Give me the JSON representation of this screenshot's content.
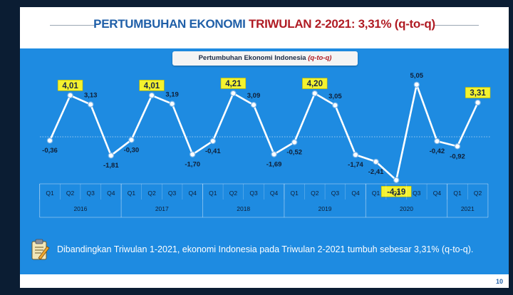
{
  "slide": {
    "title_part1": "PERTUMBUHAN EKONOMI",
    "title_part2": "TRIWULAN 2-2021: 3,31% (q-to-q)",
    "subtitle_main": "Pertumbuhan Ekonomi Indonesia",
    "subtitle_qtq": "(q-to-q)",
    "note": "Dibandingkan Triwulan 1-2021, ekonomi Indonesia pada Triwulan 2-2021 tumbuh sebesar 3,31% (q-to-q).",
    "page_number": "10"
  },
  "colors": {
    "panel": "#1e8be1",
    "line": "#ffffff",
    "highlight": "#f4f22e",
    "title_blue": "#1f5fa8",
    "title_red": "#b01c24"
  },
  "icons": {
    "note": "clipboard-icon"
  },
  "chart_data": {
    "type": "line",
    "title": "Pertumbuhan Ekonomi Indonesia (q-to-q)",
    "quarters": [
      "Q1",
      "Q2",
      "Q3",
      "Q4",
      "Q1",
      "Q2",
      "Q3",
      "Q4",
      "Q1",
      "Q2",
      "Q3",
      "Q4",
      "Q1",
      "Q2",
      "Q3",
      "Q4",
      "Q1",
      "Q2",
      "Q3",
      "Q4",
      "Q1",
      "Q2"
    ],
    "values": [
      -0.36,
      4.01,
      3.13,
      -1.81,
      -0.3,
      4.01,
      3.19,
      -1.7,
      -0.41,
      4.21,
      3.09,
      -1.69,
      -0.52,
      4.2,
      3.05,
      -1.74,
      -2.41,
      -4.19,
      5.05,
      -0.42,
      -0.92,
      3.31
    ],
    "labels": [
      "-0,36",
      "4,01",
      "3,13",
      "-1,81",
      "-0,30",
      "4,01",
      "3,19",
      "-1,70",
      "-0,41",
      "4,21",
      "3,09",
      "-1,69",
      "-0,52",
      "4,20",
      "3,05",
      "-1,74",
      "-2,41",
      "-4,19",
      "5,05",
      "-0,42",
      "-0,92",
      "3,31"
    ],
    "highlighted_labels": [
      "4,01",
      "4,01",
      "4,21",
      "4,20",
      "-4,19",
      "3,31"
    ],
    "years": [
      {
        "label": "2016",
        "quarters": 4
      },
      {
        "label": "2017",
        "quarters": 4
      },
      {
        "label": "2018",
        "quarters": 4
      },
      {
        "label": "2019",
        "quarters": 4
      },
      {
        "label": "2020",
        "quarters": 4
      },
      {
        "label": "2021",
        "quarters": 2
      }
    ],
    "ylim": [
      -5,
      6
    ],
    "grid": false,
    "legend": "none"
  }
}
